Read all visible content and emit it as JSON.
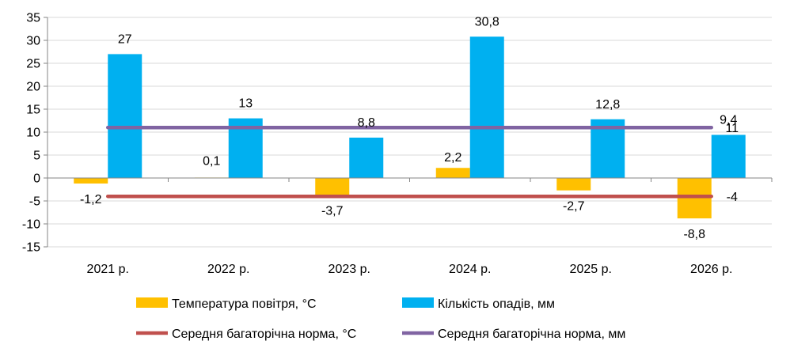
{
  "chart_data": {
    "type": "bar",
    "categories": [
      "2021 р.",
      "2022 р.",
      "2023 р.",
      "2024 р.",
      "2025 р.",
      "2026 р."
    ],
    "ylim": [
      -15,
      35
    ],
    "yticks": [
      35,
      30,
      25,
      20,
      15,
      10,
      5,
      0,
      -5,
      -10,
      -15
    ],
    "grid": true,
    "legend_position": "bottom",
    "series": [
      {
        "name": "Температура повітря, °С",
        "kind": "bar",
        "color": "#FFC000",
        "values": [
          -1.2,
          0.1,
          -3.7,
          2.2,
          -2.7,
          -8.8
        ],
        "labels": [
          "-1,2",
          "0,1",
          "-3,7",
          "2,2",
          "-2,7",
          "-8,8"
        ]
      },
      {
        "name": "Кількість опадів, мм",
        "kind": "bar",
        "color": "#00B0F0",
        "values": [
          27,
          13,
          8.8,
          30.8,
          12.8,
          9.4
        ],
        "labels": [
          "27",
          "13",
          "8,8",
          "30,8",
          "12,8",
          "9,4"
        ]
      },
      {
        "name": "Середня багаторічна норма, °С",
        "kind": "line",
        "color": "#C0504D",
        "value": -4,
        "label": "-4"
      },
      {
        "name": "Середня багаторічна норма, мм",
        "kind": "line",
        "color": "#8064A2",
        "value": 11,
        "label": "11"
      }
    ]
  }
}
